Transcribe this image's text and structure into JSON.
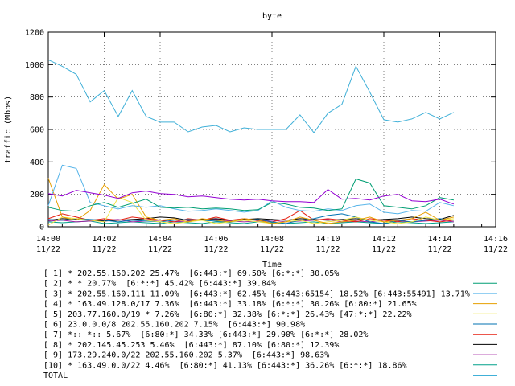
{
  "chart_data": {
    "type": "line",
    "title": "byte",
    "xlabel": "Time",
    "ylabel": "traffic (Mbps)",
    "ylim": [
      0,
      1200
    ],
    "xlim_minutes": [
      0,
      16
    ],
    "y_ticks": [
      0,
      200,
      400,
      600,
      800,
      1000,
      1200
    ],
    "y_tick_labels": [
      "0",
      "200",
      "400",
      "600",
      "800",
      "1000",
      "1200"
    ],
    "x_ticks": [
      {
        "minute": 0,
        "time": "14:00",
        "date": "11/22"
      },
      {
        "minute": 2,
        "time": "14:02",
        "date": "11/22"
      },
      {
        "minute": 4,
        "time": "14:04",
        "date": "11/22"
      },
      {
        "minute": 6,
        "time": "14:06",
        "date": "11/22"
      },
      {
        "minute": 8,
        "time": "14:08",
        "date": "11/22"
      },
      {
        "minute": 10,
        "time": "14:10",
        "date": "11/22"
      },
      {
        "minute": 12,
        "time": "14:12",
        "date": "11/22"
      },
      {
        "minute": 14,
        "time": "14:14",
        "date": "11/22"
      },
      {
        "minute": 16,
        "time": "14:16",
        "date": "11/22"
      }
    ],
    "grid": true,
    "legend_position": "bottom",
    "x_minutes": [
      0,
      0.5,
      1,
      1.5,
      2,
      2.5,
      3,
      3.5,
      4,
      4.5,
      5,
      5.5,
      6,
      6.5,
      7,
      7.5,
      8,
      8.5,
      9,
      9.5,
      10,
      10.5,
      11,
      11.5,
      12,
      12.5,
      13,
      13.5,
      14,
      14.5
    ],
    "series": [
      {
        "label": "[ 1] * 202.55.160.202 25.47%  [6:443:*] 69.50% [6:*:*] 30.05%",
        "color": "#9400d3",
        "values": [
          205,
          190,
          225,
          210,
          195,
          175,
          210,
          220,
          205,
          200,
          185,
          190,
          180,
          170,
          165,
          170,
          160,
          155,
          155,
          150,
          230,
          170,
          175,
          165,
          190,
          200,
          160,
          155,
          170,
          140
        ]
      },
      {
        "label": "[ 2] * * 20.77%  [6:*:*] 45.42% [6:443:*] 39.84%",
        "color": "#009e73",
        "values": [
          120,
          100,
          95,
          130,
          150,
          120,
          145,
          170,
          120,
          115,
          120,
          110,
          115,
          110,
          100,
          105,
          150,
          140,
          120,
          115,
          100,
          110,
          295,
          270,
          130,
          120,
          110,
          130,
          180,
          165
        ]
      },
      {
        "label": "[ 3] * 202.55.160.111 11.09%  [6:443:*] 62.45% [6:443:65154] 18.52% [6:443:55491] 13.71%",
        "color": "#56b4e9",
        "values": [
          130,
          380,
          360,
          150,
          130,
          110,
          130,
          120,
          130,
          110,
          95,
          100,
          110,
          100,
          90,
          100,
          160,
          120,
          100,
          95,
          110,
          100,
          130,
          140,
          90,
          80,
          100,
          95,
          150,
          130
        ]
      },
      {
        "label": "[ 4] * 163.49.128.0/17 7.36%  [6:443:*] 33.18% [6:*:*] 30.26% [6:80:*] 21.65%",
        "color": "#e69f00",
        "values": [
          300,
          60,
          40,
          100,
          260,
          170,
          200,
          60,
          40,
          50,
          30,
          50,
          40,
          30,
          50,
          40,
          20,
          30,
          60,
          40,
          20,
          30,
          40,
          60,
          30,
          40,
          50,
          90,
          40,
          60
        ]
      },
      {
        "label": "[ 5] 203.77.160.0/19 * 7.26%  [6:80:*] 32.38% [6:*:*] 26.43% [47:*:*] 22.22%",
        "color": "#f0e442",
        "values": [
          10,
          60,
          50,
          40,
          30,
          180,
          150,
          40,
          30,
          20,
          30,
          40,
          20,
          30,
          40,
          30,
          20,
          30,
          40,
          20,
          30,
          40,
          60,
          40,
          30,
          20,
          30,
          60,
          40,
          50
        ]
      },
      {
        "label": "[ 6] 23.0.0.0/8 202.55.160.202 7.15%  [6:443:*] 90.98%",
        "color": "#0072b2",
        "values": [
          45,
          40,
          50,
          45,
          40,
          30,
          40,
          35,
          30,
          40,
          45,
          40,
          35,
          30,
          40,
          45,
          30,
          20,
          40,
          50,
          70,
          80,
          60,
          30,
          20,
          40,
          30,
          40,
          50,
          40
        ]
      },
      {
        "label": "[ 7] *:: *:: 5.67%  [6:80:*] 34.33% [6:443:*] 29.90% [6:*:*] 28.02%",
        "color": "#e51e10",
        "values": [
          50,
          80,
          60,
          40,
          50,
          40,
          60,
          50,
          40,
          30,
          50,
          40,
          60,
          40,
          50,
          40,
          30,
          50,
          100,
          40,
          50,
          40,
          30,
          50,
          40,
          30,
          50,
          40,
          30,
          40
        ]
      },
      {
        "label": "[ 8] * 202.145.45.253 5.46%  [6:443:*] 87.10% [6:80:*] 12.39%",
        "color": "#000000",
        "values": [
          40,
          50,
          45,
          40,
          35,
          40,
          45,
          50,
          60,
          55,
          40,
          45,
          50,
          40,
          45,
          50,
          45,
          40,
          50,
          45,
          40,
          45,
          50,
          40,
          45,
          50,
          60,
          50,
          45,
          70
        ]
      },
      {
        "label": "[ 9] 173.29.240.0/22 202.55.160.202 5.37%  [6:443:*] 98.63%",
        "color": "#a020a0",
        "values": [
          35,
          40,
          30,
          35,
          40,
          45,
          30,
          35,
          40,
          30,
          35,
          40,
          45,
          35,
          30,
          35,
          40,
          30,
          35,
          40,
          45,
          30,
          35,
          30,
          40,
          35,
          30,
          35,
          40,
          30
        ]
      },
      {
        "label": "[10] * 163.49.0.0/22 4.46%  [6:80:*] 41.13% [6:443:*] 36.26% [6:*:*] 18.86%",
        "color": "#00a08a",
        "values": [
          30,
          25,
          30,
          35,
          20,
          25,
          30,
          25,
          20,
          30,
          25,
          20,
          30,
          25,
          20,
          30,
          25,
          20,
          25,
          30,
          20,
          25,
          30,
          25,
          20,
          30,
          25,
          20,
          25,
          30
        ]
      },
      {
        "label": "TOTAL",
        "color": "#40b0d8",
        "values": [
          1030,
          990,
          940,
          770,
          840,
          680,
          840,
          680,
          645,
          645,
          585,
          615,
          625,
          585,
          610,
          600,
          600,
          600,
          690,
          580,
          700,
          755,
          990,
          830,
          660,
          645,
          665,
          705,
          665,
          705
        ]
      }
    ]
  }
}
